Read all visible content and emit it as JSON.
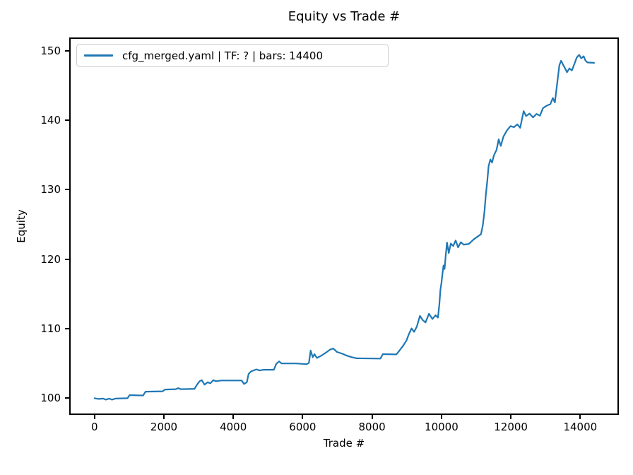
{
  "figure": {
    "background": "#ffffff",
    "spine_color": "#000000",
    "legend_border_color": "#cccccc"
  },
  "chart_data": {
    "type": "line",
    "title": "Equity vs Trade #",
    "xlabel": "Trade #",
    "ylabel": "Equity",
    "xlim": [
      -730,
      15115
    ],
    "ylim": [
      97.6,
      151.9
    ],
    "x_ticks": [
      0,
      2000,
      4000,
      6000,
      8000,
      10000,
      12000,
      14000
    ],
    "y_ticks": [
      100,
      110,
      120,
      130,
      140,
      150
    ],
    "grid": false,
    "legend": {
      "position": "upper left",
      "entries": [
        {
          "label": "cfg_merged.yaml | TF: ? | bars: 14400",
          "color": "#1f77b4"
        }
      ]
    },
    "series": [
      {
        "name": "cfg_merged.yaml | TF: ? | bars: 14400",
        "color": "#1f77b4",
        "points": [
          [
            0,
            100.0
          ],
          [
            120,
            99.9
          ],
          [
            250,
            99.95
          ],
          [
            320,
            99.8
          ],
          [
            420,
            99.95
          ],
          [
            500,
            99.8
          ],
          [
            600,
            99.95
          ],
          [
            950,
            100.0
          ],
          [
            1010,
            100.45
          ],
          [
            1400,
            100.4
          ],
          [
            1470,
            100.95
          ],
          [
            1960,
            101.0
          ],
          [
            2030,
            101.25
          ],
          [
            2340,
            101.3
          ],
          [
            2410,
            101.45
          ],
          [
            2490,
            101.3
          ],
          [
            2880,
            101.35
          ],
          [
            2960,
            102.0
          ],
          [
            3030,
            102.45
          ],
          [
            3090,
            102.6
          ],
          [
            3170,
            101.95
          ],
          [
            3260,
            102.3
          ],
          [
            3340,
            102.15
          ],
          [
            3420,
            102.6
          ],
          [
            3500,
            102.45
          ],
          [
            3650,
            102.55
          ],
          [
            4240,
            102.55
          ],
          [
            4310,
            102.05
          ],
          [
            4390,
            102.3
          ],
          [
            4440,
            103.5
          ],
          [
            4510,
            103.85
          ],
          [
            4660,
            104.15
          ],
          [
            4760,
            104.0
          ],
          [
            4870,
            104.1
          ],
          [
            5170,
            104.1
          ],
          [
            5240,
            104.95
          ],
          [
            5320,
            105.3
          ],
          [
            5390,
            105.0
          ],
          [
            5800,
            105.0
          ],
          [
            6120,
            104.9
          ],
          [
            6180,
            105.1
          ],
          [
            6230,
            106.85
          ],
          [
            6290,
            105.9
          ],
          [
            6340,
            106.35
          ],
          [
            6410,
            105.8
          ],
          [
            6510,
            106.05
          ],
          [
            6650,
            106.5
          ],
          [
            6790,
            107.0
          ],
          [
            6880,
            107.15
          ],
          [
            6990,
            106.65
          ],
          [
            7120,
            106.45
          ],
          [
            7260,
            106.15
          ],
          [
            7420,
            105.9
          ],
          [
            7560,
            105.75
          ],
          [
            8240,
            105.7
          ],
          [
            8310,
            106.35
          ],
          [
            8700,
            106.3
          ],
          [
            8790,
            106.85
          ],
          [
            8890,
            107.5
          ],
          [
            8990,
            108.3
          ],
          [
            9060,
            109.2
          ],
          [
            9140,
            110.05
          ],
          [
            9210,
            109.55
          ],
          [
            9290,
            110.3
          ],
          [
            9380,
            111.85
          ],
          [
            9460,
            111.25
          ],
          [
            9540,
            110.9
          ],
          [
            9640,
            112.15
          ],
          [
            9740,
            111.4
          ],
          [
            9830,
            111.95
          ],
          [
            9900,
            111.6
          ],
          [
            9940,
            113.5
          ],
          [
            9970,
            115.6
          ],
          [
            10000,
            116.6
          ],
          [
            10030,
            117.9
          ],
          [
            10060,
            119.1
          ],
          [
            10090,
            118.6
          ],
          [
            10120,
            120.3
          ],
          [
            10160,
            122.4
          ],
          [
            10210,
            120.9
          ],
          [
            10270,
            122.25
          ],
          [
            10340,
            121.9
          ],
          [
            10410,
            122.7
          ],
          [
            10480,
            121.7
          ],
          [
            10560,
            122.45
          ],
          [
            10640,
            122.1
          ],
          [
            10790,
            122.2
          ],
          [
            10930,
            122.85
          ],
          [
            11040,
            123.25
          ],
          [
            11140,
            123.6
          ],
          [
            11190,
            124.8
          ],
          [
            11240,
            126.8
          ],
          [
            11280,
            129.3
          ],
          [
            11320,
            131.2
          ],
          [
            11360,
            133.4
          ],
          [
            11410,
            134.35
          ],
          [
            11460,
            133.9
          ],
          [
            11510,
            134.9
          ],
          [
            11590,
            135.75
          ],
          [
            11650,
            137.25
          ],
          [
            11710,
            136.3
          ],
          [
            11790,
            137.65
          ],
          [
            11890,
            138.55
          ],
          [
            11990,
            139.15
          ],
          [
            12090,
            139.0
          ],
          [
            12190,
            139.4
          ],
          [
            12270,
            138.9
          ],
          [
            12370,
            141.3
          ],
          [
            12440,
            140.6
          ],
          [
            12540,
            140.95
          ],
          [
            12640,
            140.4
          ],
          [
            12740,
            140.9
          ],
          [
            12840,
            140.65
          ],
          [
            12930,
            141.75
          ],
          [
            13040,
            142.1
          ],
          [
            13140,
            142.3
          ],
          [
            13210,
            143.2
          ],
          [
            13270,
            142.55
          ],
          [
            13340,
            145.4
          ],
          [
            13400,
            147.9
          ],
          [
            13450,
            148.55
          ],
          [
            13500,
            148.05
          ],
          [
            13560,
            147.5
          ],
          [
            13620,
            146.9
          ],
          [
            13690,
            147.45
          ],
          [
            13760,
            147.15
          ],
          [
            13830,
            148.05
          ],
          [
            13900,
            149.0
          ],
          [
            13970,
            149.4
          ],
          [
            14030,
            148.9
          ],
          [
            14100,
            149.2
          ],
          [
            14150,
            148.6
          ],
          [
            14210,
            148.3
          ],
          [
            14400,
            148.25
          ]
        ]
      }
    ]
  }
}
